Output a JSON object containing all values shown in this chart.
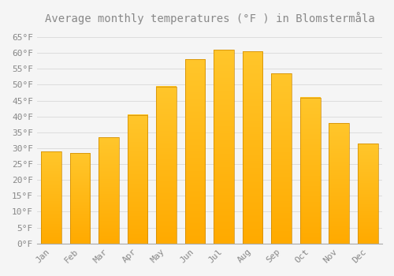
{
  "title": "Average monthly temperatures (°F ) in Blomstermåla",
  "months": [
    "Jan",
    "Feb",
    "Mar",
    "Apr",
    "May",
    "Jun",
    "Jul",
    "Aug",
    "Sep",
    "Oct",
    "Nov",
    "Dec"
  ],
  "values": [
    29.0,
    28.5,
    33.5,
    40.5,
    49.5,
    58.0,
    61.0,
    60.5,
    53.5,
    46.0,
    38.0,
    31.5
  ],
  "bar_color_top": "#FFC62B",
  "bar_color_bottom": "#FFAA00",
  "bar_edge_color": "#CC8800",
  "background_color": "#F5F5F5",
  "grid_color": "#DDDDDD",
  "text_color": "#888888",
  "ylim": [
    0,
    67
  ],
  "yticks": [
    0,
    5,
    10,
    15,
    20,
    25,
    30,
    35,
    40,
    45,
    50,
    55,
    60,
    65
  ],
  "ytick_labels": [
    "0°F",
    "5°F",
    "10°F",
    "15°F",
    "20°F",
    "25°F",
    "30°F",
    "35°F",
    "40°F",
    "45°F",
    "50°F",
    "55°F",
    "60°F",
    "65°F"
  ],
  "title_fontsize": 10,
  "tick_fontsize": 8,
  "font_family": "monospace"
}
